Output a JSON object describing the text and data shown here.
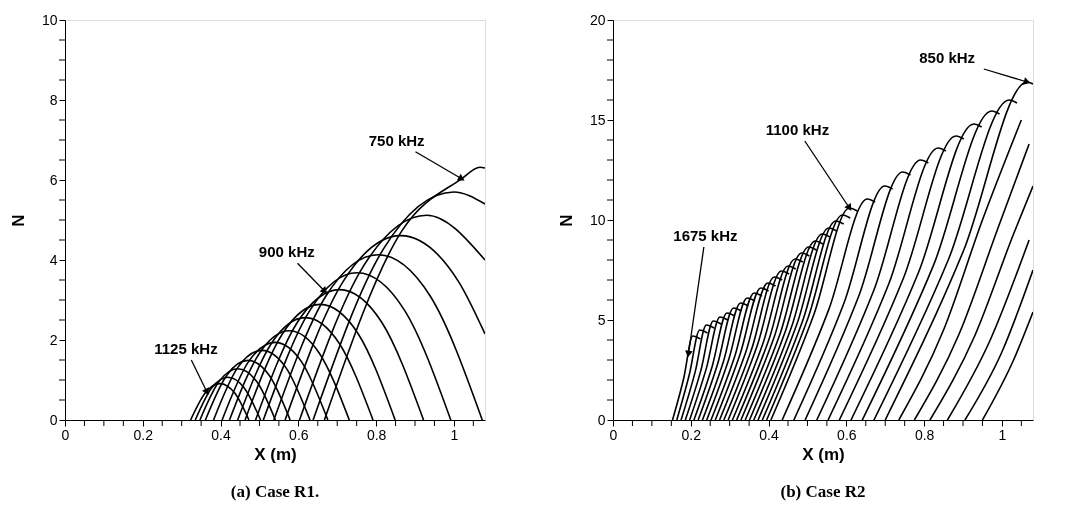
{
  "chart_data": [
    {
      "type": "line",
      "title": "(a) Case R1.",
      "xlabel": "X (m)",
      "ylabel": "N",
      "xlim": [
        0,
        1.08
      ],
      "xticks": [
        0,
        {
          "value": 0.05,
          "label": null
        },
        {
          "value": 0.1,
          "label": null
        },
        {
          "value": 0.15,
          "label": null
        },
        0.2,
        {
          "value": 0.25,
          "label": null
        },
        {
          "value": 0.3,
          "label": null
        },
        {
          "value": 0.35,
          "label": null
        },
        0.4,
        {
          "value": 0.45,
          "label": null
        },
        {
          "value": 0.5,
          "label": null
        },
        {
          "value": 0.55,
          "label": null
        },
        0.6,
        {
          "value": 0.65,
          "label": null
        },
        {
          "value": 0.7,
          "label": null
        },
        {
          "value": 0.75,
          "label": null
        },
        0.8,
        {
          "value": 0.85,
          "label": null
        },
        {
          "value": 0.9,
          "label": null
        },
        {
          "value": 0.95,
          "label": null
        },
        1,
        {
          "value": 1.05,
          "label": null
        }
      ],
      "ylim": [
        0,
        10
      ],
      "yticks": [
        0,
        {
          "value": 0.5,
          "label": null
        },
        {
          "value": 1,
          "label": null
        },
        {
          "value": 1.5,
          "label": null
        },
        2,
        {
          "value": 2.5,
          "label": null
        },
        {
          "value": 3,
          "label": null
        },
        {
          "value": 3.5,
          "label": null
        },
        4,
        {
          "value": 4.5,
          "label": null
        },
        {
          "value": 5,
          "label": null
        },
        {
          "value": 5.5,
          "label": null
        },
        6,
        {
          "value": 6.5,
          "label": null
        },
        {
          "value": 7,
          "label": null
        },
        {
          "value": 7.5,
          "label": null
        },
        8,
        {
          "value": 8.5,
          "label": null
        },
        {
          "value": 9,
          "label": null
        },
        {
          "value": 9.5,
          "label": null
        },
        10
      ],
      "annotations": [
        {
          "text": "1125 kHz",
          "x": 0.365,
          "y": 0.7
        },
        {
          "text": "900 kHz",
          "x": 0.668,
          "y": 3.22
        },
        {
          "text": "750 kHz",
          "x": 1.02,
          "y": 6.03
        }
      ],
      "series": [
        {
          "color": "#000000",
          "x": [
            0.667,
            0.867,
            1.02,
            1.067,
            1.08
          ],
          "values": [
            0,
            4.74,
            6.03,
            6.32,
            6.3
          ]
        },
        {
          "color": "#000000",
          "x": [
            0.638,
            0.819,
            1.0,
            1.08
          ],
          "values": [
            0,
            4.28,
            5.7,
            5.4
          ]
        },
        {
          "color": "#000000",
          "x": [
            0.603,
            0.767,
            0.93,
            1.08
          ],
          "values": [
            0,
            3.84,
            5.12,
            4.0
          ]
        },
        {
          "color": "#000000",
          "x": [
            0.566,
            0.715,
            0.863,
            1.012,
            1.08
          ],
          "values": [
            0,
            3.46,
            4.61,
            3.46,
            2.15
          ]
        },
        {
          "color": "#000000",
          "x": [
            0.537,
            0.671,
            0.805,
            0.939,
            1.073
          ],
          "values": [
            0,
            3.1,
            4.13,
            3.1,
            0
          ]
        },
        {
          "color": "#000000",
          "x": [
            0.51,
            0.631,
            0.751,
            0.872,
            0.992
          ],
          "values": [
            0,
            2.76,
            3.68,
            2.76,
            0
          ]
        },
        {
          "color": "#000000",
          "x": [
            0.49,
            0.598,
            0.706,
            0.814,
            0.922
          ],
          "values": [
            0,
            2.45,
            3.26,
            2.45,
            0
          ]
        },
        {
          "color": "#000000",
          "x": [
            0.463,
            0.56,
            0.656,
            0.753,
            0.849
          ],
          "values": [
            0,
            2.17,
            2.89,
            2.17,
            0
          ]
        },
        {
          "color": "#000000",
          "x": [
            0.444,
            0.531,
            0.618,
            0.705,
            0.792
          ],
          "values": [
            0,
            1.92,
            2.56,
            1.92,
            0
          ]
        },
        {
          "color": "#000000",
          "x": [
            0.423,
            0.5,
            0.577,
            0.654,
            0.731
          ],
          "values": [
            0,
            1.67,
            2.23,
            1.67,
            0
          ]
        },
        {
          "color": "#000000",
          "x": [
            0.404,
            0.472,
            0.54,
            0.608,
            0.676
          ],
          "values": [
            0,
            1.46,
            1.94,
            1.46,
            0
          ]
        },
        {
          "color": "#000000",
          "x": [
            0.382,
            0.444,
            0.506,
            0.568,
            0.63
          ],
          "values": [
            0,
            1.31,
            1.74,
            1.31,
            0
          ]
        },
        {
          "color": "#000000",
          "x": [
            0.361,
            0.416,
            0.47,
            0.525,
            0.579
          ],
          "values": [
            0,
            1.12,
            1.49,
            1.12,
            0
          ]
        },
        {
          "color": "#000000",
          "x": [
            0.347,
            0.396,
            0.444,
            0.493,
            0.541
          ],
          "values": [
            0,
            0.96,
            1.28,
            0.96,
            0
          ]
        },
        {
          "color": "#000000",
          "x": [
            0.335,
            0.377,
            0.419,
            0.461,
            0.503
          ],
          "values": [
            0,
            0.8,
            1.07,
            0.8,
            0
          ]
        },
        {
          "color": "#000000",
          "x": [
            0.323,
            0.361,
            0.398,
            0.436,
            0.473
          ],
          "values": [
            0,
            0.68,
            0.91,
            0.68,
            0
          ]
        }
      ]
    },
    {
      "type": "line",
      "title": "(b) Case R2",
      "xlabel": "X (m)",
      "ylabel": "N",
      "xlim": [
        0,
        1.08
      ],
      "xticks": [
        0,
        {
          "value": 0.05,
          "label": null
        },
        {
          "value": 0.1,
          "label": null
        },
        {
          "value": 0.15,
          "label": null
        },
        0.2,
        {
          "value": 0.25,
          "label": null
        },
        {
          "value": 0.3,
          "label": null
        },
        {
          "value": 0.35,
          "label": null
        },
        0.4,
        {
          "value": 0.45,
          "label": null
        },
        {
          "value": 0.5,
          "label": null
        },
        {
          "value": 0.55,
          "label": null
        },
        0.6,
        {
          "value": 0.65,
          "label": null
        },
        {
          "value": 0.7,
          "label": null
        },
        {
          "value": 0.75,
          "label": null
        },
        0.8,
        {
          "value": 0.85,
          "label": null
        },
        {
          "value": 0.9,
          "label": null
        },
        {
          "value": 0.95,
          "label": null
        },
        1,
        {
          "value": 1.05,
          "label": null
        }
      ],
      "ylim": [
        0,
        20
      ],
      "yticks": [
        0,
        {
          "value": 1,
          "label": null
        },
        {
          "value": 2,
          "label": null
        },
        {
          "value": 3,
          "label": null
        },
        {
          "value": 4,
          "label": null
        },
        5,
        {
          "value": 6,
          "label": null
        },
        {
          "value": 7,
          "label": null
        },
        {
          "value": 8,
          "label": null
        },
        {
          "value": 9,
          "label": null
        },
        10,
        {
          "value": 11,
          "label": null
        },
        {
          "value": 12,
          "label": null
        },
        {
          "value": 13,
          "label": null
        },
        {
          "value": 14,
          "label": null
        },
        15,
        {
          "value": 16,
          "label": null
        },
        {
          "value": 17,
          "label": null
        },
        {
          "value": 18,
          "label": null
        },
        {
          "value": 19,
          "label": null
        },
        20
      ],
      "annotations": [
        {
          "text": "1675 kHz",
          "x": 0.194,
          "y": 3.3
        },
        {
          "text": "1100 kHz",
          "x": 0.608,
          "y": 10.6
        },
        {
          "text": "850 kHz",
          "x": 1.065,
          "y": 16.9
        }
      ],
      "series": [
        {
          "color": "#000000",
          "x": [
            0.153,
            0.182,
            0.205,
            0.225
          ],
          "values": [
            0,
            2.1,
            4.2,
            4.05
          ]
        },
        {
          "color": "#000000",
          "x": [
            0.164,
            0.196,
            0.223,
            0.243
          ],
          "values": [
            0,
            2.25,
            4.5,
            4.35
          ]
        },
        {
          "color": "#000000",
          "x": [
            0.175,
            0.211,
            0.24,
            0.26
          ],
          "values": [
            0,
            2.38,
            4.75,
            4.6
          ]
        },
        {
          "color": "#000000",
          "x": [
            0.186,
            0.226,
            0.258,
            0.278
          ],
          "values": [
            0,
            2.48,
            4.95,
            4.8
          ]
        },
        {
          "color": "#000000",
          "x": [
            0.197,
            0.24,
            0.275,
            0.295
          ],
          "values": [
            0,
            2.58,
            5.15,
            5.0
          ]
        },
        {
          "color": "#000000",
          "x": [
            0.208,
            0.255,
            0.293,
            0.313
          ],
          "values": [
            0,
            2.68,
            5.35,
            5.2
          ]
        },
        {
          "color": "#000000",
          "x": [
            0.219,
            0.269,
            0.31,
            0.33
          ],
          "values": [
            0,
            2.8,
            5.6,
            5.45
          ]
        },
        {
          "color": "#000000",
          "x": [
            0.23,
            0.284,
            0.328,
            0.348
          ],
          "values": [
            0,
            2.93,
            5.85,
            5.7
          ]
        },
        {
          "color": "#000000",
          "x": [
            0.241,
            0.298,
            0.345,
            0.365
          ],
          "values": [
            0,
            3.05,
            6.1,
            5.95
          ]
        },
        {
          "color": "#000000",
          "x": [
            0.252,
            0.313,
            0.363,
            0.383
          ],
          "values": [
            0,
            3.18,
            6.35,
            6.2
          ]
        },
        {
          "color": "#000000",
          "x": [
            0.263,
            0.327,
            0.38,
            0.4
          ],
          "values": [
            0,
            3.3,
            6.6,
            6.45
          ]
        },
        {
          "color": "#000000",
          "x": [
            0.274,
            0.342,
            0.398,
            0.418
          ],
          "values": [
            0,
            3.43,
            6.85,
            6.7
          ]
        },
        {
          "color": "#000000",
          "x": [
            0.285,
            0.357,
            0.415,
            0.435
          ],
          "values": [
            0,
            3.58,
            7.15,
            7.0
          ]
        },
        {
          "color": "#000000",
          "x": [
            0.296,
            0.371,
            0.433,
            0.453
          ],
          "values": [
            0,
            3.73,
            7.45,
            7.3
          ]
        },
        {
          "color": "#000000",
          "x": [
            0.307,
            0.386,
            0.45,
            0.47
          ],
          "values": [
            0,
            3.85,
            7.7,
            7.55
          ]
        },
        {
          "color": "#000000",
          "x": [
            0.318,
            0.401,
            0.468,
            0.488
          ],
          "values": [
            0,
            4.03,
            8.05,
            7.9
          ]
        },
        {
          "color": "#000000",
          "x": [
            0.329,
            0.415,
            0.485,
            0.505
          ],
          "values": [
            0,
            4.18,
            8.35,
            8.2
          ]
        },
        {
          "color": "#000000",
          "x": [
            0.34,
            0.43,
            0.503,
            0.523
          ],
          "values": [
            0,
            4.33,
            8.65,
            8.5
          ]
        },
        {
          "color": "#000000",
          "x": [
            0.351,
            0.444,
            0.52,
            0.54
          ],
          "values": [
            0,
            4.48,
            8.95,
            8.8
          ]
        },
        {
          "color": "#000000",
          "x": [
            0.362,
            0.459,
            0.538,
            0.558
          ],
          "values": [
            0,
            4.65,
            9.3,
            9.15
          ]
        },
        {
          "color": "#000000",
          "x": [
            0.373,
            0.473,
            0.555,
            0.575
          ],
          "values": [
            0,
            4.8,
            9.6,
            9.45
          ]
        },
        {
          "color": "#000000",
          "x": [
            0.384,
            0.488,
            0.573,
            0.593
          ],
          "values": [
            0,
            4.98,
            9.95,
            9.8
          ]
        },
        {
          "color": "#000000",
          "x": [
            0.395,
            0.502,
            0.59,
            0.61
          ],
          "values": [
            0,
            5.13,
            10.25,
            10.1
          ]
        },
        {
          "color": "#000000",
          "x": [
            0.406,
            0.517,
            0.608,
            0.628
          ],
          "values": [
            0,
            5.3,
            10.6,
            10.45
          ]
        },
        {
          "color": "#000000",
          "x": [
            0.435,
            0.555,
            0.654,
            0.674
          ],
          "values": [
            0,
            5.53,
            11.05,
            10.9
          ]
        },
        {
          "color": "#000000",
          "x": [
            0.465,
            0.594,
            0.699,
            0.719
          ],
          "values": [
            0,
            5.85,
            11.7,
            11.55
          ]
        },
        {
          "color": "#000000",
          "x": [
            0.494,
            0.632,
            0.745,
            0.765
          ],
          "values": [
            0,
            6.2,
            12.4,
            12.25
          ]
        },
        {
          "color": "#000000",
          "x": [
            0.524,
            0.671,
            0.791,
            0.811
          ],
          "values": [
            0,
            6.5,
            13.0,
            12.85
          ]
        },
        {
          "color": "#000000",
          "x": [
            0.553,
            0.709,
            0.836,
            0.856
          ],
          "values": [
            0,
            6.8,
            13.6,
            13.45
          ]
        },
        {
          "color": "#000000",
          "x": [
            0.582,
            0.747,
            0.882,
            0.902
          ],
          "values": [
            0,
            7.1,
            14.2,
            14.05
          ]
        },
        {
          "color": "#000000",
          "x": [
            0.612,
            0.786,
            0.928,
            0.948
          ],
          "values": [
            0,
            7.4,
            14.8,
            14.65
          ]
        },
        {
          "color": "#000000",
          "x": [
            0.641,
            0.824,
            0.974,
            0.994
          ],
          "values": [
            0,
            7.73,
            15.45,
            15.3
          ]
        },
        {
          "color": "#000000",
          "x": [
            0.671,
            0.862,
            1.019,
            1.039
          ],
          "values": [
            0,
            8.0,
            16.0,
            15.85
          ]
        },
        {
          "color": "#000000",
          "x": [
            0.7,
            0.901,
            1.065,
            1.08
          ],
          "values": [
            0,
            8.45,
            16.9,
            16.8
          ]
        },
        {
          "color": "#000000",
          "x": [
            0.735,
            0.85,
            0.95,
            1.05
          ],
          "values": [
            0,
            4.5,
            10.0,
            15.0
          ]
        },
        {
          "color": "#000000",
          "x": [
            0.775,
            0.89,
            0.99,
            1.07
          ],
          "values": [
            0,
            4.3,
            9.6,
            13.8
          ]
        },
        {
          "color": "#000000",
          "x": [
            0.815,
            0.93,
            1.03,
            1.08
          ],
          "values": [
            0,
            4.2,
            9.3,
            11.7
          ]
        },
        {
          "color": "#000000",
          "x": [
            0.86,
            0.97,
            1.07
          ],
          "values": [
            0,
            4.0,
            9.0
          ]
        },
        {
          "color": "#000000",
          "x": [
            0.905,
            1.0,
            1.08
          ],
          "values": [
            0,
            3.4,
            7.5
          ]
        },
        {
          "color": "#000000",
          "x": [
            0.95,
            1.03,
            1.08
          ],
          "values": [
            0,
            3.0,
            5.4
          ]
        }
      ]
    }
  ]
}
